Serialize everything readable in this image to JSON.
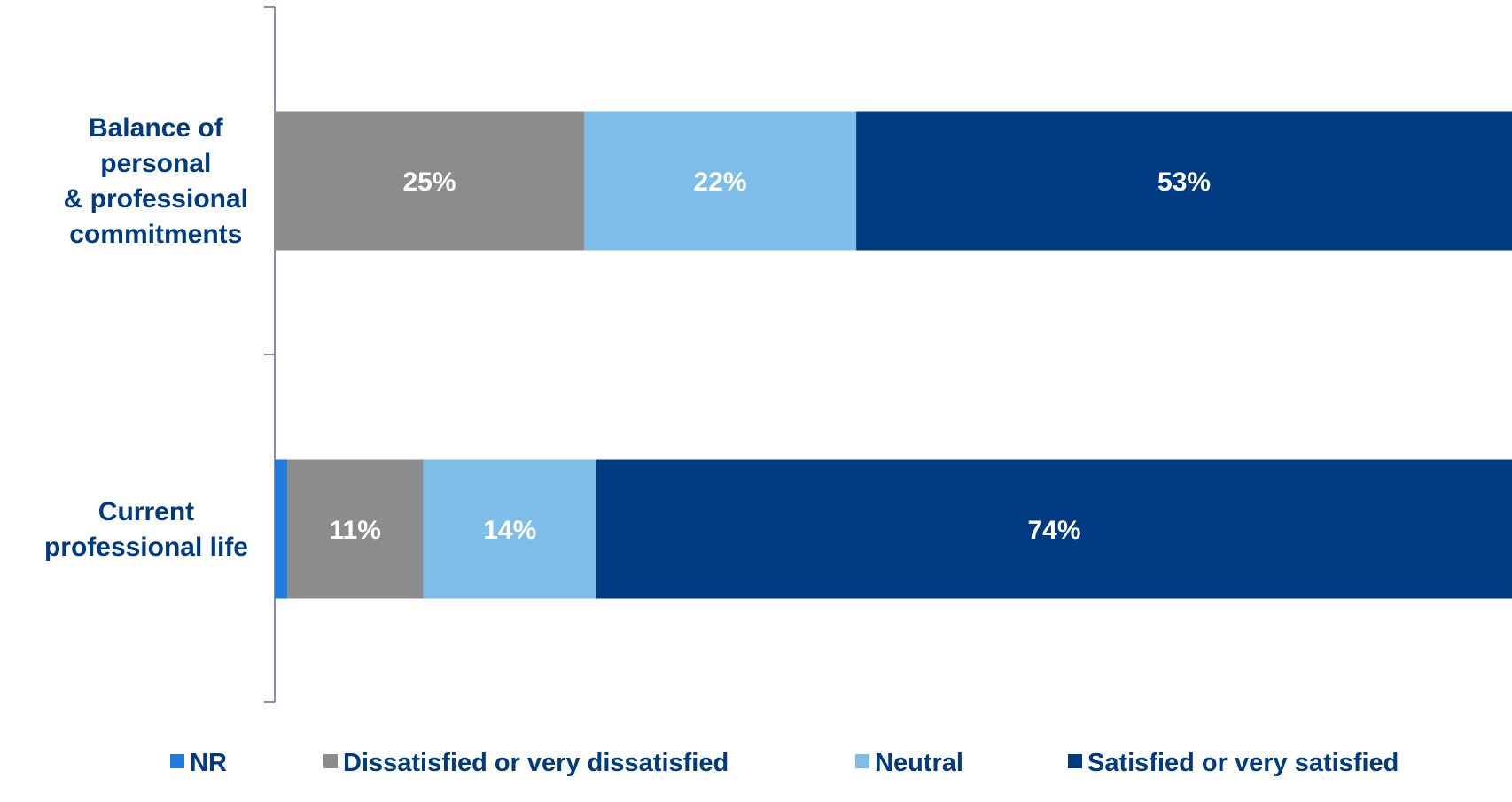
{
  "chart_data": {
    "type": "bar",
    "orientation": "horizontal",
    "stacked": true,
    "categories": [
      "Balance of personal & professional commitments",
      "Current professional life"
    ],
    "category_label_lines": [
      [
        "Balance of",
        "personal",
        "& professional",
        "commitments"
      ],
      [
        "Current",
        "professional life"
      ]
    ],
    "series": [
      {
        "name": "NR",
        "color": "#1f7ae0",
        "values": [
          0,
          1
        ],
        "labels": [
          "",
          ""
        ]
      },
      {
        "name": "Dissatisfied or very dissatisfied",
        "color": "#8c8c8c",
        "values": [
          25,
          11
        ],
        "labels": [
          "25%",
          "11%"
        ]
      },
      {
        "name": "Neutral",
        "color": "#7dbde8",
        "values": [
          22,
          14
        ],
        "labels": [
          "22%",
          "14%"
        ]
      },
      {
        "name": "Satisfied or very satisfied",
        "color": "#003a80",
        "values": [
          53,
          74
        ],
        "labels": [
          "53%",
          "74%"
        ]
      }
    ],
    "xlim": [
      0,
      100
    ],
    "grid": false,
    "legend_position": "bottom",
    "axis_color": "#5a6aa0"
  }
}
